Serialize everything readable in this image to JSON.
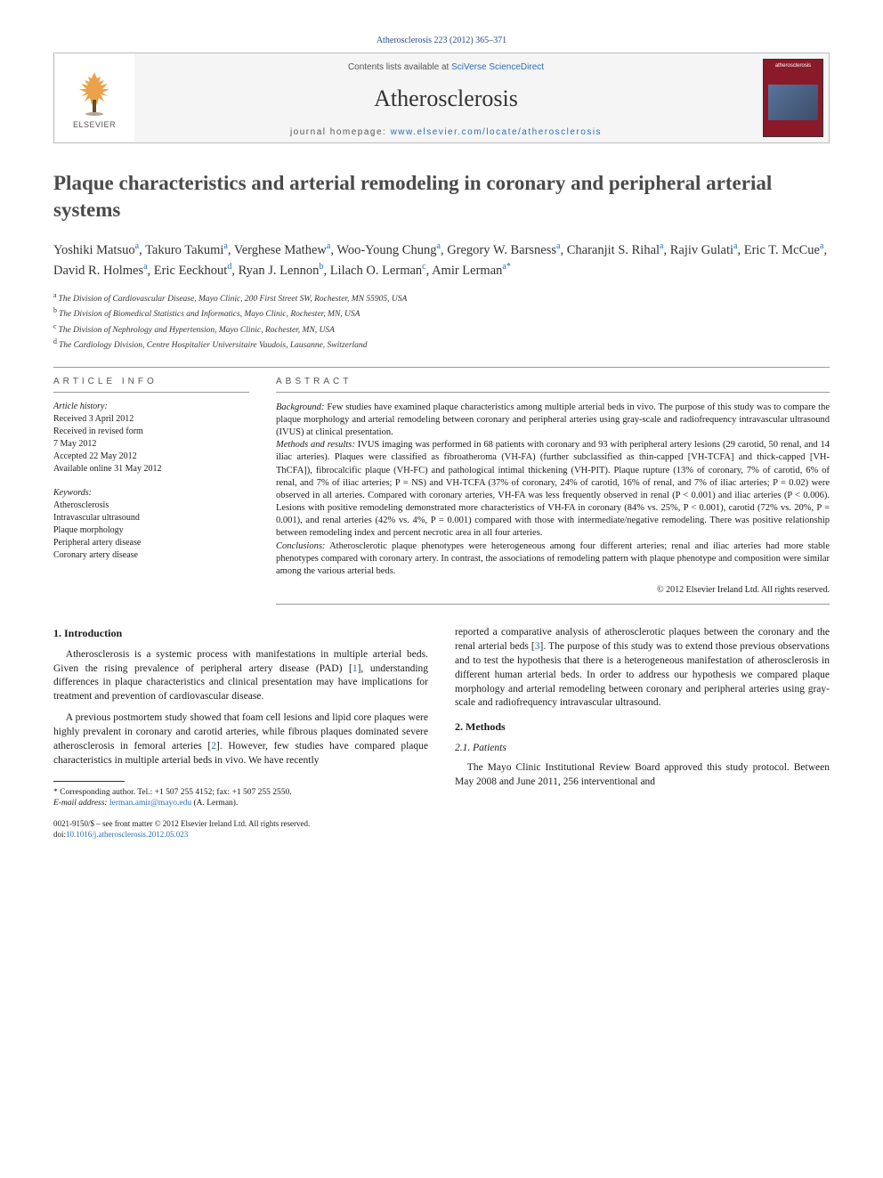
{
  "running_head": "Atherosclerosis 223 (2012) 365–371",
  "masthead": {
    "contents_prefix": "Contents lists available at ",
    "contents_link": "SciVerse ScienceDirect",
    "journal_name": "Atherosclerosis",
    "homepage_prefix": "journal homepage: ",
    "homepage_link": "www.elsevier.com/locate/atherosclerosis",
    "elsevier_label": "ELSEVIER",
    "cover_title": "atherosclerosis"
  },
  "title": "Plaque characteristics and arterial remodeling in coronary and peripheral arterial systems",
  "authors_line": "Yoshiki Matsuo|a|, Takuro Takumi|a|, Verghese Mathew|a|, Woo-Young Chung|a|, Gregory W. Barsness|a|, Charanjit S. Rihal|a|, Rajiv Gulati|a|, Eric T. McCue|a|, David R. Holmes|a|, Eric Eeckhout|d|, Ryan J. Lennon|b|, Lilach O. Lerman|c|, Amir Lerman|a,*|",
  "affiliations": [
    {
      "sup": "a",
      "text": "The Division of Cardiovascular Disease, Mayo Clinic, 200 First Street SW, Rochester, MN 55905, USA"
    },
    {
      "sup": "b",
      "text": "The Division of Biomedical Statistics and Informatics, Mayo Clinic, Rochester, MN, USA"
    },
    {
      "sup": "c",
      "text": "The Division of Nephrology and Hypertension, Mayo Clinic, Rochester, MN, USA"
    },
    {
      "sup": "d",
      "text": "The Cardiology Division, Centre Hospitalier Universitaire Vaudois, Lausanne, Switzerland"
    }
  ],
  "article_info": {
    "head": "ARTICLE INFO",
    "history_label": "Article history:",
    "history": [
      "Received 3 April 2012",
      "Received in revised form",
      "7 May 2012",
      "Accepted 22 May 2012",
      "Available online 31 May 2012"
    ],
    "keywords_label": "Keywords:",
    "keywords": [
      "Atherosclerosis",
      "Intravascular ultrasound",
      "Plaque morphology",
      "Peripheral artery disease",
      "Coronary artery disease"
    ]
  },
  "abstract": {
    "head": "ABSTRACT",
    "background_label": "Background:",
    "background": "Few studies have examined plaque characteristics among multiple arterial beds in vivo. The purpose of this study was to compare the plaque morphology and arterial remodeling between coronary and peripheral arteries using gray-scale and radiofrequency intravascular ultrasound (IVUS) at clinical presentation.",
    "methods_label": "Methods and results:",
    "methods": "IVUS imaging was performed in 68 patients with coronary and 93 with peripheral artery lesions (29 carotid, 50 renal, and 14 iliac arteries). Plaques were classified as fibroatheroma (VH-FA) (further subclassified as thin-capped [VH-TCFA] and thick-capped [VH-ThCFA]), fibrocalcific plaque (VH-FC) and pathological intimal thickening (VH-PIT). Plaque rupture (13% of coronary, 7% of carotid, 6% of renal, and 7% of iliac arteries; P = NS) and VH-TCFA (37% of coronary, 24% of carotid, 16% of renal, and 7% of iliac arteries; P = 0.02) were observed in all arteries. Compared with coronary arteries, VH-FA was less frequently observed in renal (P < 0.001) and iliac arteries (P < 0.006). Lesions with positive remodeling demonstrated more characteristics of VH-FA in coronary (84% vs. 25%, P < 0.001), carotid (72% vs. 20%, P = 0.001), and renal arteries (42% vs. 4%, P = 0.001) compared with those with intermediate/negative remodeling. There was positive relationship between remodeling index and percent necrotic area in all four arteries.",
    "conclusions_label": "Conclusions:",
    "conclusions": "Atherosclerotic plaque phenotypes were heterogeneous among four different arteries; renal and iliac arteries had more stable phenotypes compared with coronary artery. In contrast, the associations of remodeling pattern with plaque phenotype and composition were similar among the various arterial beds.",
    "copyright": "© 2012 Elsevier Ireland Ltd. All rights reserved."
  },
  "body": {
    "intro_head": "1. Introduction",
    "intro_p1": "Atherosclerosis is a systemic process with manifestations in multiple arterial beds. Given the rising prevalence of peripheral artery disease (PAD) [1], understanding differences in plaque characteristics and clinical presentation may have implications for treatment and prevention of cardiovascular disease.",
    "intro_p2": "A previous postmortem study showed that foam cell lesions and lipid core plaques were highly prevalent in coronary and carotid arteries, while fibrous plaques dominated severe atherosclerosis in femoral arteries [2]. However, few studies have compared plaque characteristics in multiple arterial beds in vivo. We have recently",
    "intro_p2_cont": "reported a comparative analysis of atherosclerotic plaques between the coronary and the renal arterial beds [3]. The purpose of this study was to extend those previous observations and to test the hypothesis that there is a heterogeneous manifestation of atherosclerosis in different human arterial beds. In order to address our hypothesis we compared plaque morphology and arterial remodeling between coronary and peripheral arteries using gray-scale and radiofrequency intravascular ultrasound.",
    "methods_head": "2. Methods",
    "patients_head": "2.1. Patients",
    "patients_p1": "The Mayo Clinic Institutional Review Board approved this study protocol. Between May 2008 and June 2011, 256 interventional and"
  },
  "footnotes": {
    "corresponding": "* Corresponding author. Tel.: +1 507 255 4152; fax: +1 507 255 2550.",
    "email_label": "E-mail address:",
    "email": "lerman.amir@mayo.edu",
    "email_owner": "(A. Lerman)."
  },
  "doi": {
    "line1": "0021-9150/$ – see front matter © 2012 Elsevier Ireland Ltd. All rights reserved.",
    "line2_prefix": "doi:",
    "line2_link": "10.1016/j.atherosclerosis.2012.05.023"
  },
  "colors": {
    "link": "#2a6eb8",
    "running_head": "#2a4a8a",
    "cover_bg": "#8a1a2a"
  }
}
